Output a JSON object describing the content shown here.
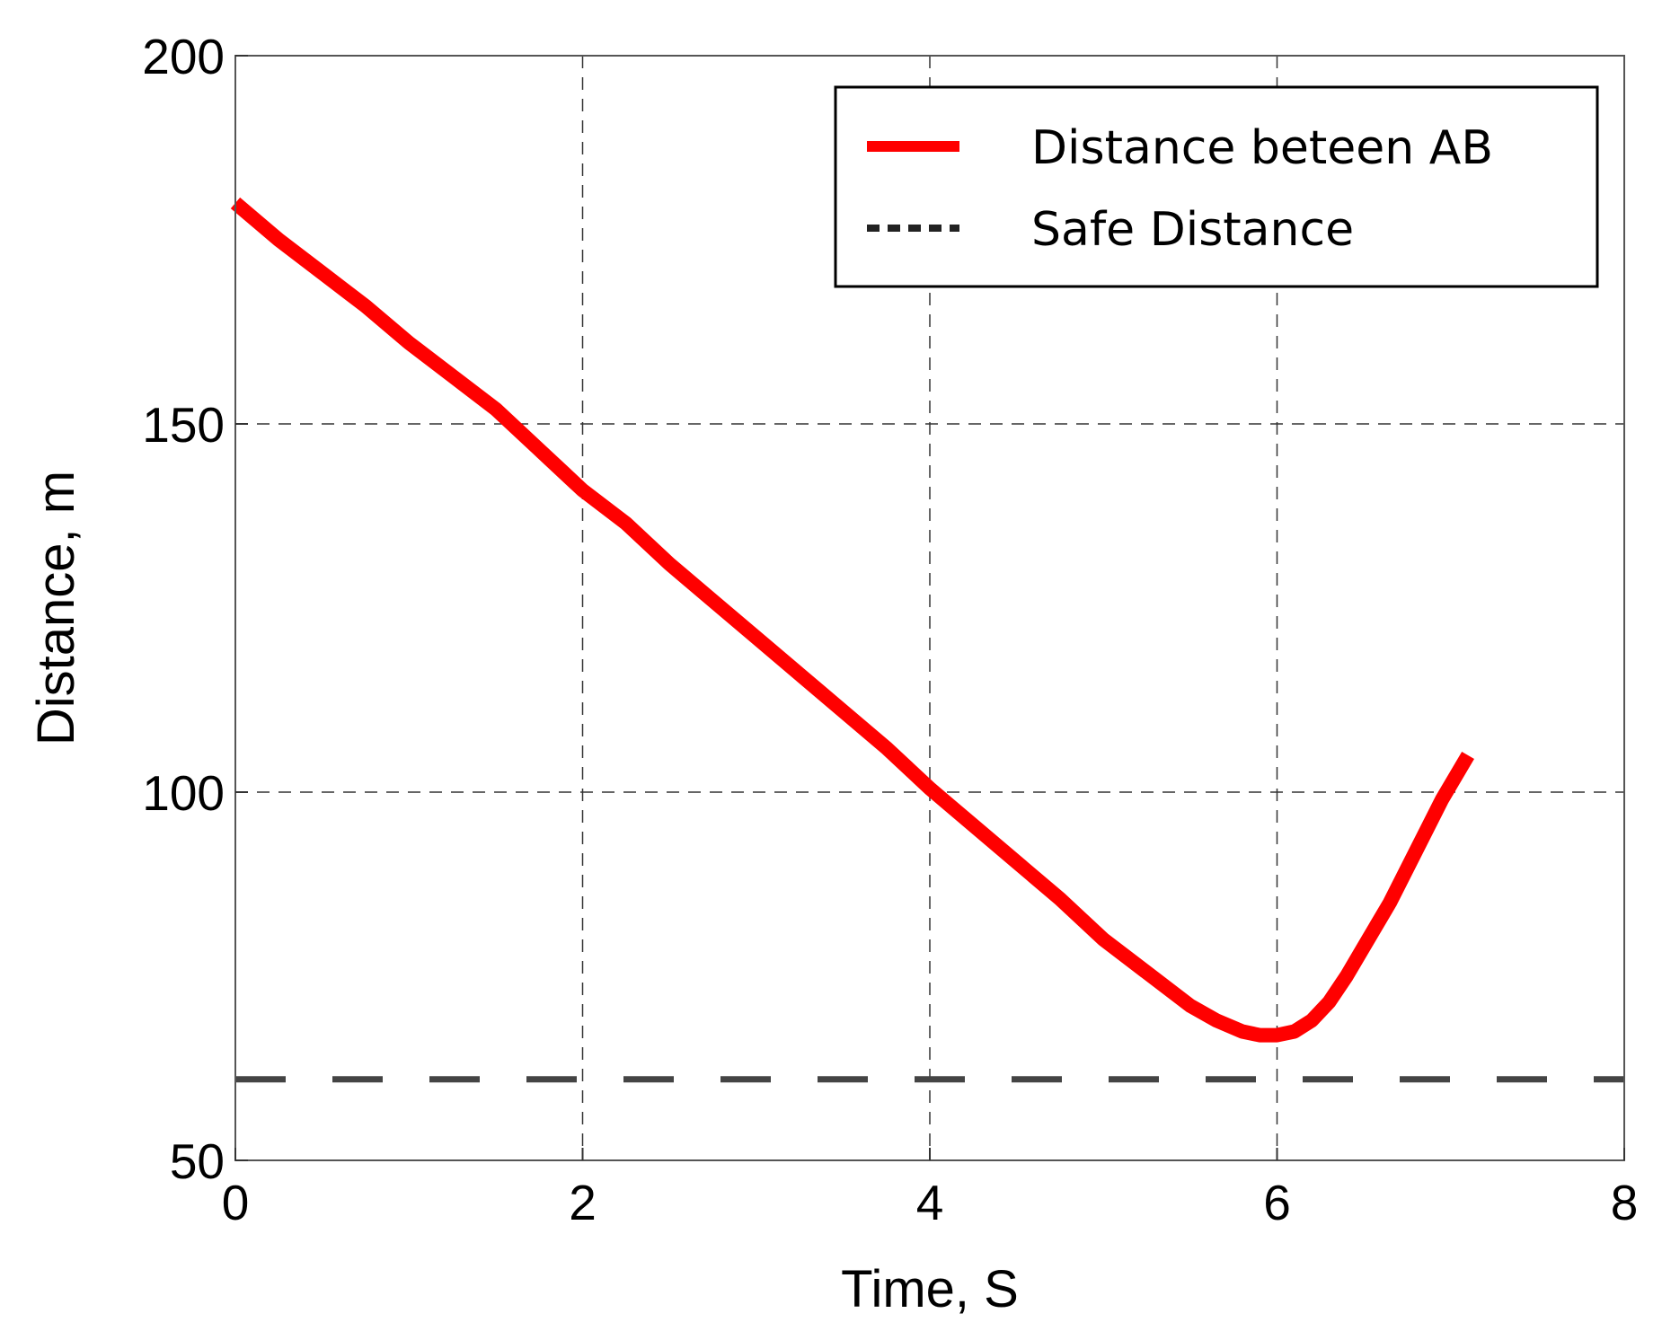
{
  "chart_data": {
    "type": "line",
    "xlabel": "Time, S",
    "ylabel": "Distance, m",
    "xlim": [
      0,
      8
    ],
    "ylim": [
      50,
      200
    ],
    "xticks": [
      0,
      2,
      4,
      6,
      8
    ],
    "yticks": [
      50,
      100,
      150,
      200
    ],
    "grid": true,
    "legend_position": "top-right",
    "series": [
      {
        "name": "Distance beteen AB",
        "color": "#ff0000",
        "style": "solid",
        "x": [
          0,
          0.25,
          0.5,
          0.75,
          1.0,
          1.25,
          1.5,
          1.75,
          2.0,
          2.25,
          2.5,
          2.75,
          3.0,
          3.25,
          3.5,
          3.75,
          4.0,
          4.25,
          4.5,
          4.75,
          5.0,
          5.25,
          5.5,
          5.65,
          5.8,
          5.9,
          6.0,
          6.1,
          6.2,
          6.3,
          6.4,
          6.5,
          6.65,
          6.8,
          6.95,
          7.1
        ],
        "y": [
          180,
          175,
          170.5,
          166,
          161,
          156.5,
          152,
          146.5,
          141,
          136.5,
          131,
          126,
          121,
          116,
          111,
          106,
          100.5,
          95.5,
          90.5,
          85.5,
          80,
          75.5,
          71,
          69,
          67.5,
          67,
          67,
          67.5,
          69,
          71.5,
          75,
          79,
          85,
          92,
          99,
          105
        ]
      },
      {
        "name": "Safe Distance",
        "color": "#444444",
        "style": "dashed",
        "x": [
          0,
          8
        ],
        "y": [
          61,
          61
        ]
      }
    ]
  }
}
